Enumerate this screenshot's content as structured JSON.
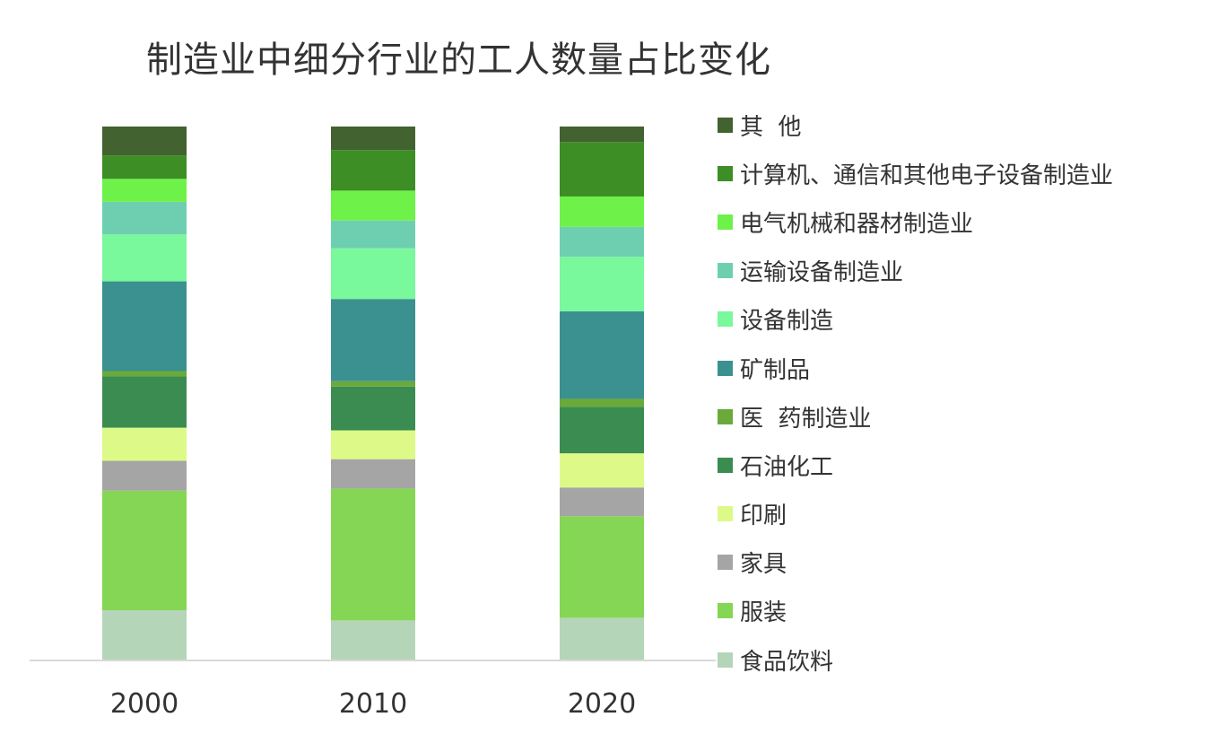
{
  "chart_data": {
    "type": "bar",
    "stacked": true,
    "percent_stacked": true,
    "title": "制造业中细分行业的工人数量占比变化",
    "xlabel": "",
    "ylabel": "",
    "ylim": [
      0,
      100
    ],
    "categories": [
      "2000",
      "2010",
      "2020"
    ],
    "legend_position": "right",
    "grid": false,
    "series": [
      {
        "name": "食品饮料",
        "color": "#b5d5b8",
        "values": [
          9.4,
          7.5,
          8.0
        ]
      },
      {
        "name": "服装",
        "color": "#84d654",
        "values": [
          22.4,
          24.7,
          19.0
        ]
      },
      {
        "name": "家具",
        "color": "#a5a5a5",
        "values": [
          5.6,
          5.5,
          5.4
        ]
      },
      {
        "name": "印刷",
        "color": "#ddfa88",
        "values": [
          6.2,
          5.4,
          6.4
        ]
      },
      {
        "name": "石油化工",
        "color": "#3b8c50",
        "values": [
          9.6,
          8.2,
          8.7
        ]
      },
      {
        "name": "医  药制造业",
        "color": "#6aaa3a",
        "values": [
          1.0,
          1.0,
          1.5
        ]
      },
      {
        "name": "矿制品",
        "color": "#3b9190",
        "values": [
          16.8,
          15.4,
          16.4
        ]
      },
      {
        "name": "设备制造",
        "color": "#79f89c",
        "values": [
          8.8,
          9.5,
          10.2
        ]
      },
      {
        "name": "运输设备制造业",
        "color": "#6ecfb0",
        "values": [
          6.1,
          5.2,
          5.6
        ]
      },
      {
        "name": "电气机械和器材制造业",
        "color": "#6ef24a",
        "values": [
          4.3,
          5.6,
          5.7
        ]
      },
      {
        "name": "计算机、通信和其他电子设备制造业",
        "color": "#3d8e24",
        "values": [
          4.4,
          7.6,
          10.2
        ]
      },
      {
        "name": "其  他",
        "color": "#426230",
        "values": [
          5.4,
          4.4,
          2.9
        ]
      }
    ]
  }
}
